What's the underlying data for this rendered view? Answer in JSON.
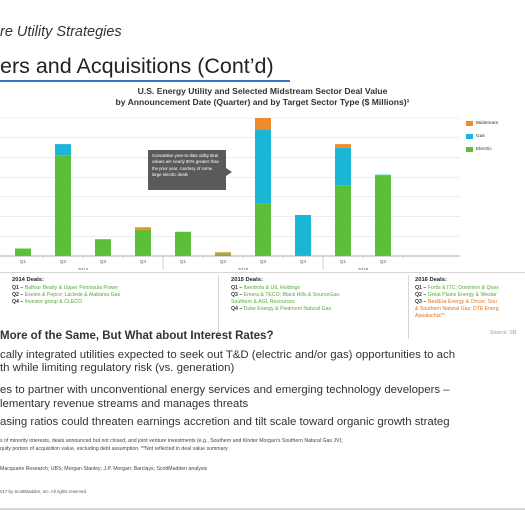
{
  "header": {
    "subtitle": "re Utility Strategies",
    "title": "ers and Acquisitions (Cont’d)"
  },
  "chart_data": {
    "type": "bar",
    "title": "U.S. Energy Utility and Selected Midstream Sector Deal Value",
    "subtitle": "by Announcement Date (Quarter) and by Target Sector Type ($ Millions)¹",
    "quarters": [
      "Q1",
      "Q2",
      "Q3",
      "Q4",
      "Q1",
      "Q2",
      "Q3",
      "Q4",
      "Q1",
      "Q2"
    ],
    "years": [
      "2014",
      "2015",
      "2016"
    ],
    "series": [
      {
        "name": "Electric",
        "values": [
          2,
          27,
          4.5,
          7,
          6.5,
          0.5,
          14,
          0,
          19,
          21.5
        ]
      },
      {
        "name": "Gas",
        "values": [
          0,
          3,
          0,
          0,
          0,
          0,
          20,
          11,
          10,
          0.3
        ]
      },
      {
        "name": "Midstream",
        "values": [
          0,
          0,
          0,
          0.7,
          0,
          0.5,
          3,
          0,
          1,
          0
        ]
      }
    ],
    "ylim": [
      0,
      37
    ],
    "grid": true,
    "legend_position": "top-right"
  },
  "legend": {
    "items": [
      {
        "label": "Midstream",
        "color": "#f08a2a"
      },
      {
        "label": "Gas",
        "color": "#1bb6d6"
      },
      {
        "label": "Electric",
        "color": "#5cbf3a"
      }
    ]
  },
  "callout": {
    "text": "Cumulative year-to-date utility deal values are nearly 80% greater than the prior year, courtesy of some large electric deals"
  },
  "colors": {
    "electric": "#5cbf3a",
    "gas": "#1bb6d6",
    "midstream": "#f08a2a",
    "accent": "#2e78c6"
  },
  "deals": {
    "y2014": {
      "heading": "2014 Deals:",
      "lines": [
        {
          "q": "Q1 –",
          "text": " Balfour Beatty & Upper Peninsula Power"
        },
        {
          "q": "Q2 –",
          "text": " Exelon & Pepco; Laclede & Alabama Gas"
        },
        {
          "q": "Q4 –",
          "text": " Investor group & CLECO"
        }
      ]
    },
    "y2015": {
      "heading": "2015 Deals:",
      "lines": [
        {
          "q": "Q1 –",
          "text": " Iberdrola & UIL Holdings"
        },
        {
          "q": "Q3 –",
          "text": " Emera & TECO; Black Hills & SourceGas;"
        },
        {
          "q": "",
          "text": "Southern & AGL Resources"
        },
        {
          "q": "Q4 –",
          "text": " Duke Energy & Piedmont Natural Gas"
        }
      ]
    },
    "y2016": {
      "heading": "2016 Deals:",
      "lines": [
        {
          "q": "Q1 –",
          "text": " Fortis & ITC; Dominion & Ques",
          "orange": false
        },
        {
          "q": "Q2 –",
          "text": " Great Plains Energy & Westar",
          "orange": false
        },
        {
          "q": "Q3 –",
          "text": " NextEra Energy & Oncor; Sou",
          "orange": true
        },
        {
          "q": "",
          "text": "& Southern Natural Gas; DTE Energ",
          "orange": true
        },
        {
          "q": "",
          "text": "Appalachia**",
          "orange": true
        }
      ]
    }
  },
  "source": "Source: SN",
  "section_heading": "More of the Same, But What about Interest Rates?",
  "bullets": [
    "cally integrated utilities expected to seek out T&D (electric and/or gas) opportunities to ach",
    "th while limiting regulatory risk (vs. generation)",
    "es to partner with unconventional energy services and emerging technology developers –",
    "lementary revenue streams and manages threats",
    "asing ratios could threaten earnings accretion and tilt scale toward organic growth strateg"
  ],
  "footnotes": [
    "s of minority interests, deals announced but not closed, and joint venture investments (e.g., Southern and Kinder Morgan's Southern Natural Gas JV);",
    "quity portion of acquisition value, excluding debt assumption. **Not reflected in deal value summary",
    "Macquarie Research; UBS; Morgan Stanley; J.P. Morgan; Barclays; ScottMadden analysis"
  ],
  "copyright": "017 by ScottMadden, Inc. All rights reserved."
}
